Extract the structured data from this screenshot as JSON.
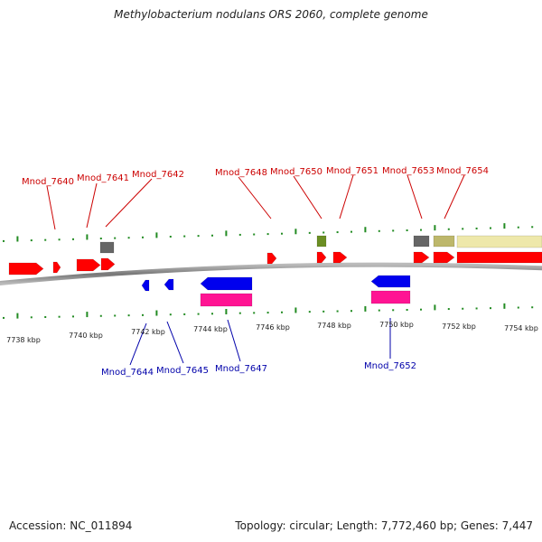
{
  "title": "Methylobacterium nodulans ORS 2060, complete genome",
  "footer": {
    "accession": "Accession: NC_011894",
    "summary": "Topology: circular; Length: 7,772,460 bp; Genes: 7,447"
  },
  "colors": {
    "forward_label": "#cc0000",
    "reverse_label": "#0000aa",
    "cds": "#ff0000",
    "cds_reverse": "#0000ee",
    "rna_pink": "#ff1493",
    "gray_gene": "#666666",
    "olive_gene": "#6b8e23",
    "khaki_gene": "#bdb76b",
    "pale_gene": "#eee8aa",
    "tick": "#228b22",
    "backbone": "#888888"
  },
  "scale": {
    "unit": "kbp",
    "labels": [
      "7738 kbp",
      "7740 kbp",
      "7742 kbp",
      "7744 kbp",
      "7746 kbp",
      "7748 kbp",
      "7750 kbp",
      "7752 kbp",
      "7754 kbp"
    ]
  },
  "forward_labels": [
    "Mnod_7640",
    "Mnod_7641",
    "Mnod_7642",
    "Mnod_7648",
    "Mnod_7650",
    "Mnod_7651",
    "Mnod_7653",
    "Mnod_7654"
  ],
  "reverse_labels": [
    "Mnod_7644",
    "Mnod_7645",
    "Mnod_7647",
    "Mnod_7652"
  ]
}
